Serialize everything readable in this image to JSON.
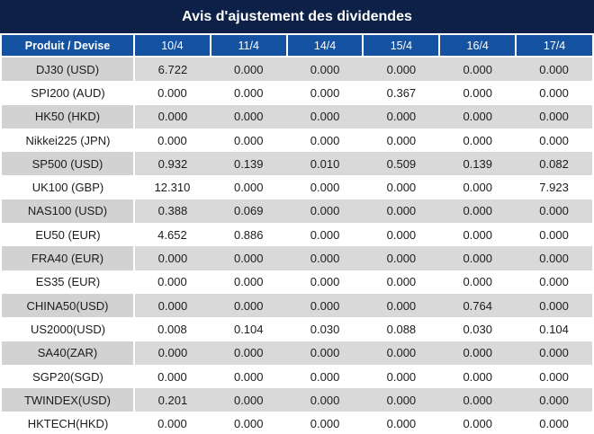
{
  "title": "Avis d'ajustement des dividendes",
  "colors": {
    "title_bg": "#0d2148",
    "header_bg": "#1552a2",
    "row_alt_bg": "#d9d9d9",
    "row_alt_col1_bg": "#d2d2d2",
    "highlight": "#e81414",
    "text": "#1c1c1c"
  },
  "table": {
    "header": [
      "Produit / Devise",
      "10/4",
      "11/4",
      "14/4",
      "15/4",
      "16/4",
      "17/4"
    ],
    "rows": [
      {
        "product": "DJ30 (USD)",
        "values": [
          "6.722",
          "0.000",
          "0.000",
          "0.000",
          "0.000",
          "0.000"
        ],
        "red": [
          0
        ]
      },
      {
        "product": "SPI200 (AUD)",
        "values": [
          "0.000",
          "0.000",
          "0.000",
          "0.367",
          "0.000",
          "0.000"
        ],
        "red": [
          3
        ]
      },
      {
        "product": "HK50 (HKD)",
        "values": [
          "0.000",
          "0.000",
          "0.000",
          "0.000",
          "0.000",
          "0.000"
        ],
        "red": []
      },
      {
        "product": "Nikkei225 (JPN)",
        "values": [
          "0.000",
          "0.000",
          "0.000",
          "0.000",
          "0.000",
          "0.000"
        ],
        "red": []
      },
      {
        "product": "SP500 (USD)",
        "values": [
          "0.932",
          "0.139",
          "0.010",
          "0.509",
          "0.139",
          "0.082"
        ],
        "red": [
          0,
          1,
          2,
          3,
          4,
          5
        ]
      },
      {
        "product": "UK100 (GBP)",
        "values": [
          "12.310",
          "0.000",
          "0.000",
          "0.000",
          "0.000",
          "7.923"
        ],
        "red": [
          0,
          5
        ]
      },
      {
        "product": "NAS100 (USD)",
        "values": [
          "0.388",
          "0.069",
          "0.000",
          "0.000",
          "0.000",
          "0.000"
        ],
        "red": [
          0,
          1
        ]
      },
      {
        "product": "EU50 (EUR)",
        "values": [
          "4.652",
          "0.886",
          "0.000",
          "0.000",
          "0.000",
          "0.000"
        ],
        "red": [
          0,
          1
        ]
      },
      {
        "product": "FRA40 (EUR)",
        "values": [
          "0.000",
          "0.000",
          "0.000",
          "0.000",
          "0.000",
          "0.000"
        ],
        "red": []
      },
      {
        "product": "ES35 (EUR)",
        "values": [
          "0.000",
          "0.000",
          "0.000",
          "0.000",
          "0.000",
          "0.000"
        ],
        "red": []
      },
      {
        "product": "CHINA50(USD)",
        "values": [
          "0.000",
          "0.000",
          "0.000",
          "0.000",
          "0.764",
          "0.000"
        ],
        "red": [
          4
        ]
      },
      {
        "product": "US2000(USD)",
        "values": [
          "0.008",
          "0.104",
          "0.030",
          "0.088",
          "0.030",
          "0.104"
        ],
        "red": [
          0,
          1,
          2,
          3,
          4,
          5
        ]
      },
      {
        "product": "SA40(ZAR)",
        "values": [
          "0.000",
          "0.000",
          "0.000",
          "0.000",
          "0.000",
          "0.000"
        ],
        "red": []
      },
      {
        "product": "SGP20(SGD)",
        "values": [
          "0.000",
          "0.000",
          "0.000",
          "0.000",
          "0.000",
          "0.000"
        ],
        "red": []
      },
      {
        "product": "TWINDEX(USD)",
        "values": [
          "0.201",
          "0.000",
          "0.000",
          "0.000",
          "0.000",
          "0.000"
        ],
        "red": [
          0
        ]
      },
      {
        "product": "HKTECH(HKD)",
        "values": [
          "0.000",
          "0.000",
          "0.000",
          "0.000",
          "0.000",
          "0.000"
        ],
        "red": []
      }
    ]
  }
}
